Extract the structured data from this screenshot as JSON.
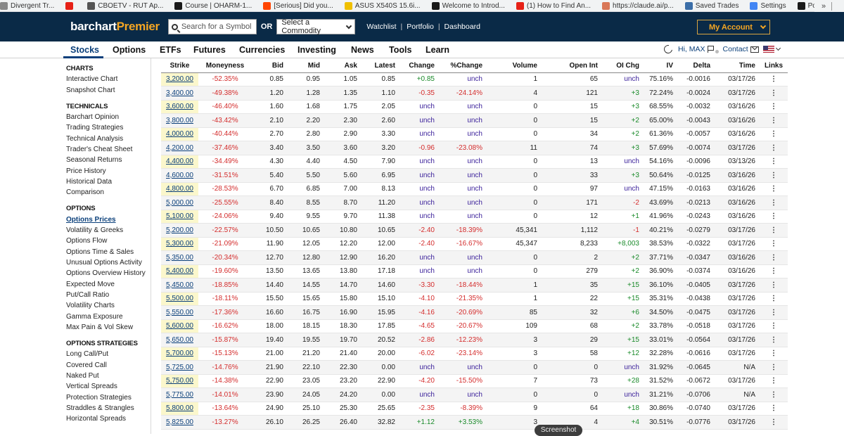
{
  "bookmarks": [
    {
      "label": "Divergent Tr...",
      "color": "#888888"
    },
    {
      "label": "",
      "color": "#e62117"
    },
    {
      "label": "CBOETV - RUT Ap...",
      "color": "#555555"
    },
    {
      "label": "Course | OHARM-1...",
      "color": "#1a1a1a"
    },
    {
      "label": "[Serious] Did you...",
      "color": "#ff4500"
    },
    {
      "label": "ASUS X540S 15.6i...",
      "color": "#f0c000"
    },
    {
      "label": "Welcome to Introd...",
      "color": "#1a1a1a"
    },
    {
      "label": "(1) How to Find An...",
      "color": "#e62117"
    },
    {
      "label": "https://claude.ai/p...",
      "color": "#d97757"
    },
    {
      "label": "Saved Trades",
      "color": "#3b6ea8"
    },
    {
      "label": "Settings",
      "color": "#4285f4"
    },
    {
      "label": "Polipace Insider P...",
      "color": "#1a1a1a"
    }
  ],
  "bookmarks_more": "»",
  "header": {
    "logo_main": "barchart",
    "logo_accent": "Premier",
    "search_placeholder": "Search for a Symbol...",
    "or_label": "OR",
    "commodity_label": "Select a Commodity",
    "links": [
      "Watchlist",
      "Portfolio",
      "Dashboard"
    ],
    "account_label": "My Account"
  },
  "nav": {
    "items": [
      "Stocks",
      "Options",
      "ETFs",
      "Futures",
      "Currencies",
      "Investing",
      "News",
      "Tools",
      "Learn"
    ],
    "greeting": "Hi, MAX",
    "contact": "Contact"
  },
  "sidebar": [
    {
      "type": "head",
      "label": "CHARTS"
    },
    {
      "type": "link",
      "label": "Interactive Chart"
    },
    {
      "type": "link",
      "label": "Snapshot Chart"
    },
    {
      "type": "head",
      "label": "TECHNICALS"
    },
    {
      "type": "link",
      "label": "Barchart Opinion"
    },
    {
      "type": "link",
      "label": "Trading Strategies"
    },
    {
      "type": "link",
      "label": "Technical Analysis"
    },
    {
      "type": "link",
      "label": "Trader's Cheat Sheet"
    },
    {
      "type": "link",
      "label": "Seasonal Returns"
    },
    {
      "type": "link",
      "label": "Price History"
    },
    {
      "type": "link",
      "label": "Historical Data"
    },
    {
      "type": "link",
      "label": "Comparison"
    },
    {
      "type": "head",
      "label": "OPTIONS"
    },
    {
      "type": "link",
      "label": "Options Prices",
      "active": true
    },
    {
      "type": "link",
      "label": "Volatility & Greeks"
    },
    {
      "type": "link",
      "label": "Options Flow"
    },
    {
      "type": "link",
      "label": "Options Time & Sales"
    },
    {
      "type": "link",
      "label": "Unusual Options Activity"
    },
    {
      "type": "link",
      "label": "Options Overview History"
    },
    {
      "type": "link",
      "label": "Expected Move"
    },
    {
      "type": "link",
      "label": "Put/Call Ratio"
    },
    {
      "type": "link",
      "label": "Volatility Charts"
    },
    {
      "type": "link",
      "label": "Gamma Exposure"
    },
    {
      "type": "link",
      "label": "Max Pain & Vol Skew"
    },
    {
      "type": "head",
      "label": "OPTIONS STRATEGIES"
    },
    {
      "type": "link",
      "label": "Long Call/Put"
    },
    {
      "type": "link",
      "label": "Covered Call"
    },
    {
      "type": "link",
      "label": "Naked Put"
    },
    {
      "type": "link",
      "label": "Vertical Spreads"
    },
    {
      "type": "link",
      "label": "Protection Strategies"
    },
    {
      "type": "link",
      "label": "Straddles & Strangles"
    },
    {
      "type": "link",
      "label": "Horizontal Spreads"
    }
  ],
  "table": {
    "columns": [
      "Strike",
      "Moneyness",
      "Bid",
      "Mid",
      "Ask",
      "Latest",
      "Change",
      "%Change",
      "Volume",
      "Open Int",
      "OI Chg",
      "IV",
      "Delta",
      "Time",
      "Links"
    ],
    "rows": [
      [
        "3,200.00",
        "-52.35%",
        "0.85",
        "0.95",
        "1.05",
        "0.85",
        "+0.85",
        "unch",
        "1",
        "65",
        "unch",
        "75.16%",
        "-0.0016",
        "03/17/26"
      ],
      [
        "3,400.00",
        "-49.38%",
        "1.20",
        "1.28",
        "1.35",
        "1.10",
        "-0.35",
        "-24.14%",
        "4",
        "121",
        "+3",
        "72.24%",
        "-0.0024",
        "03/17/26"
      ],
      [
        "3,600.00",
        "-46.40%",
        "1.60",
        "1.68",
        "1.75",
        "2.05",
        "unch",
        "unch",
        "0",
        "15",
        "+3",
        "68.55%",
        "-0.0032",
        "03/16/26"
      ],
      [
        "3,800.00",
        "-43.42%",
        "2.10",
        "2.20",
        "2.30",
        "2.60",
        "unch",
        "unch",
        "0",
        "15",
        "+2",
        "65.00%",
        "-0.0043",
        "03/16/26"
      ],
      [
        "4,000.00",
        "-40.44%",
        "2.70",
        "2.80",
        "2.90",
        "3.30",
        "unch",
        "unch",
        "0",
        "34",
        "+2",
        "61.36%",
        "-0.0057",
        "03/16/26"
      ],
      [
        "4,200.00",
        "-37.46%",
        "3.40",
        "3.50",
        "3.60",
        "3.20",
        "-0.96",
        "-23.08%",
        "11",
        "74",
        "+3",
        "57.69%",
        "-0.0074",
        "03/17/26"
      ],
      [
        "4,400.00",
        "-34.49%",
        "4.30",
        "4.40",
        "4.50",
        "7.90",
        "unch",
        "unch",
        "0",
        "13",
        "unch",
        "54.16%",
        "-0.0096",
        "03/13/26"
      ],
      [
        "4,600.00",
        "-31.51%",
        "5.40",
        "5.50",
        "5.60",
        "6.95",
        "unch",
        "unch",
        "0",
        "33",
        "+3",
        "50.64%",
        "-0.0125",
        "03/16/26"
      ],
      [
        "4,800.00",
        "-28.53%",
        "6.70",
        "6.85",
        "7.00",
        "8.13",
        "unch",
        "unch",
        "0",
        "97",
        "unch",
        "47.15%",
        "-0.0163",
        "03/16/26"
      ],
      [
        "5,000.00",
        "-25.55%",
        "8.40",
        "8.55",
        "8.70",
        "11.20",
        "unch",
        "unch",
        "0",
        "171",
        "-2",
        "43.69%",
        "-0.0213",
        "03/16/26"
      ],
      [
        "5,100.00",
        "-24.06%",
        "9.40",
        "9.55",
        "9.70",
        "11.38",
        "unch",
        "unch",
        "0",
        "12",
        "+1",
        "41.96%",
        "-0.0243",
        "03/16/26"
      ],
      [
        "5,200.00",
        "-22.57%",
        "10.50",
        "10.65",
        "10.80",
        "10.65",
        "-2.40",
        "-18.39%",
        "45,341",
        "1,112",
        "-1",
        "40.21%",
        "-0.0279",
        "03/17/26"
      ],
      [
        "5,300.00",
        "-21.09%",
        "11.90",
        "12.05",
        "12.20",
        "12.00",
        "-2.40",
        "-16.67%",
        "45,347",
        "8,233",
        "+8,003",
        "38.53%",
        "-0.0322",
        "03/17/26"
      ],
      [
        "5,350.00",
        "-20.34%",
        "12.70",
        "12.80",
        "12.90",
        "16.20",
        "unch",
        "unch",
        "0",
        "2",
        "+2",
        "37.71%",
        "-0.0347",
        "03/16/26"
      ],
      [
        "5,400.00",
        "-19.60%",
        "13.50",
        "13.65",
        "13.80",
        "17.18",
        "unch",
        "unch",
        "0",
        "279",
        "+2",
        "36.90%",
        "-0.0374",
        "03/16/26"
      ],
      [
        "5,450.00",
        "-18.85%",
        "14.40",
        "14.55",
        "14.70",
        "14.60",
        "-3.30",
        "-18.44%",
        "1",
        "35",
        "+15",
        "36.10%",
        "-0.0405",
        "03/17/26"
      ],
      [
        "5,500.00",
        "-18.11%",
        "15.50",
        "15.65",
        "15.80",
        "15.10",
        "-4.10",
        "-21.35%",
        "1",
        "22",
        "+15",
        "35.31%",
        "-0.0438",
        "03/17/26"
      ],
      [
        "5,550.00",
        "-17.36%",
        "16.60",
        "16.75",
        "16.90",
        "15.95",
        "-4.16",
        "-20.69%",
        "85",
        "32",
        "+6",
        "34.50%",
        "-0.0475",
        "03/17/26"
      ],
      [
        "5,600.00",
        "-16.62%",
        "18.00",
        "18.15",
        "18.30",
        "17.85",
        "-4.65",
        "-20.67%",
        "109",
        "68",
        "+2",
        "33.78%",
        "-0.0518",
        "03/17/26"
      ],
      [
        "5,650.00",
        "-15.87%",
        "19.40",
        "19.55",
        "19.70",
        "20.52",
        "-2.86",
        "-12.23%",
        "3",
        "29",
        "+15",
        "33.01%",
        "-0.0564",
        "03/17/26"
      ],
      [
        "5,700.00",
        "-15.13%",
        "21.00",
        "21.20",
        "21.40",
        "20.00",
        "-6.02",
        "-23.14%",
        "3",
        "58",
        "+12",
        "32.28%",
        "-0.0616",
        "03/17/26"
      ],
      [
        "5,725.00",
        "-14.76%",
        "21.90",
        "22.10",
        "22.30",
        "0.00",
        "unch",
        "unch",
        "0",
        "0",
        "unch",
        "31.92%",
        "-0.0645",
        "N/A"
      ],
      [
        "5,750.00",
        "-14.38%",
        "22.90",
        "23.05",
        "23.20",
        "22.90",
        "-4.20",
        "-15.50%",
        "7",
        "73",
        "+28",
        "31.52%",
        "-0.0672",
        "03/17/26"
      ],
      [
        "5,775.00",
        "-14.01%",
        "23.90",
        "24.05",
        "24.20",
        "0.00",
        "unch",
        "unch",
        "0",
        "0",
        "unch",
        "31.21%",
        "-0.0706",
        "N/A"
      ],
      [
        "5,800.00",
        "-13.64%",
        "24.90",
        "25.10",
        "25.30",
        "25.65",
        "-2.35",
        "-8.39%",
        "9",
        "64",
        "+18",
        "30.86%",
        "-0.0740",
        "03/17/26"
      ],
      [
        "5,825.00",
        "-13.27%",
        "26.10",
        "26.25",
        "26.40",
        "32.82",
        "+1.12",
        "+3.53%",
        "3",
        "4",
        "+4",
        "30.51%",
        "-0.0776",
        "03/17/26"
      ]
    ]
  },
  "tooltip": "Screenshot"
}
